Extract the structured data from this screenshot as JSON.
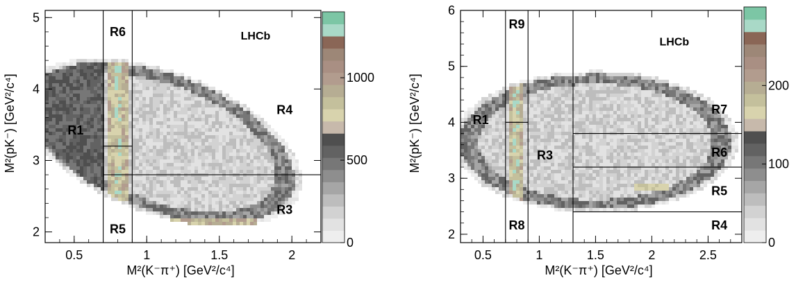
{
  "chart_data": [
    {
      "type": "heatmap",
      "experiment_label": "LHCb",
      "xlabel": "M²(K⁻π⁺) [GeV²/c⁴]",
      "ylabel": "M²(pK⁻) [GeV²/c⁴]",
      "xlim": [
        0.3,
        2.2
      ],
      "ylim": [
        1.85,
        5.1
      ],
      "xticks": [
        0.5,
        1,
        1.5,
        2
      ],
      "xtick_labels": [
        "0.5",
        "1",
        "1.5",
        "2"
      ],
      "yticks": [
        2,
        3,
        4,
        5
      ],
      "ytick_labels": [
        "2",
        "3",
        "4",
        "5"
      ],
      "colorbar": {
        "range": [
          0,
          1400
        ],
        "ticks": [
          0,
          500,
          1000
        ],
        "tick_labels": [
          "0",
          "500",
          "1000"
        ]
      },
      "boundaries": [
        {
          "x1": 0.7,
          "y1": 1.85,
          "x2": 0.7,
          "y2": 5.1
        },
        {
          "x1": 0.9,
          "y1": 1.85,
          "x2": 0.9,
          "y2": 5.1
        },
        {
          "x1": 0.7,
          "y1": 3.2,
          "x2": 0.9,
          "y2": 3.2
        },
        {
          "x1": 0.7,
          "y1": 2.8,
          "x2": 2.2,
          "y2": 2.8
        }
      ],
      "regions": [
        {
          "label": "R1",
          "x": 0.51,
          "y": 3.42
        },
        {
          "label": "R3",
          "x": 1.95,
          "y": 2.31
        },
        {
          "label": "R4",
          "x": 1.95,
          "y": 3.71
        },
        {
          "label": "R5",
          "x": 0.8,
          "y": 2.04
        },
        {
          "label": "R6",
          "x": 0.8,
          "y": 4.8
        }
      ]
    },
    {
      "type": "heatmap",
      "experiment_label": "LHCb",
      "xlabel": "M²(K⁻π⁺) [GeV²/c⁴]",
      "ylabel": "M²(pK⁻) [GeV²/c⁴]",
      "xlim": [
        0.3,
        2.8
      ],
      "ylim": [
        1.85,
        6
      ],
      "xticks": [
        0.5,
        1,
        1.5,
        2,
        2.5
      ],
      "xtick_labels": [
        "0.5",
        "1",
        "1.5",
        "2",
        "2.5"
      ],
      "yticks": [
        2,
        3,
        4,
        5,
        6
      ],
      "ytick_labels": [
        "2",
        "3",
        "4",
        "5",
        "6"
      ],
      "colorbar": {
        "range": [
          0,
          300
        ],
        "ticks": [
          0,
          100,
          200
        ],
        "tick_labels": [
          "0",
          "100",
          "200"
        ]
      },
      "boundaries": [
        {
          "x1": 0.7,
          "y1": 1.85,
          "x2": 0.7,
          "y2": 6
        },
        {
          "x1": 0.9,
          "y1": 1.85,
          "x2": 0.9,
          "y2": 6
        },
        {
          "x1": 1.3,
          "y1": 1.85,
          "x2": 1.3,
          "y2": 6
        },
        {
          "x1": 0.7,
          "y1": 4.0,
          "x2": 0.9,
          "y2": 4.0
        },
        {
          "x1": 1.3,
          "y1": 3.8,
          "x2": 2.8,
          "y2": 3.8
        },
        {
          "x1": 1.3,
          "y1": 3.2,
          "x2": 2.8,
          "y2": 3.2
        },
        {
          "x1": 1.3,
          "y1": 2.4,
          "x2": 2.8,
          "y2": 2.4
        }
      ],
      "regions": [
        {
          "label": "R1",
          "x": 0.48,
          "y": 4.04
        },
        {
          "label": "R3",
          "x": 1.05,
          "y": 3.41
        },
        {
          "label": "R4",
          "x": 2.6,
          "y": 2.16
        },
        {
          "label": "R5",
          "x": 2.6,
          "y": 2.77
        },
        {
          "label": "R6",
          "x": 2.6,
          "y": 3.46
        },
        {
          "label": "R7",
          "x": 2.6,
          "y": 4.23
        },
        {
          "label": "R8",
          "x": 0.8,
          "y": 2.16
        },
        {
          "label": "R9",
          "x": 0.8,
          "y": 5.75
        }
      ]
    }
  ],
  "palette": [
    "#eeeeee",
    "#e2e2e2",
    "#d2d2d2",
    "#bdbdbd",
    "#a6a6a6",
    "#8e8e8e",
    "#777777",
    "#626262",
    "#4f4f4f",
    "#c7b9ab",
    "#d8d3ad",
    "#c4c09c",
    "#b6ad93",
    "#b29c8e",
    "#a98f83",
    "#9d8777",
    "#8a6656",
    "#a9d9c7",
    "#7cc6a5"
  ]
}
